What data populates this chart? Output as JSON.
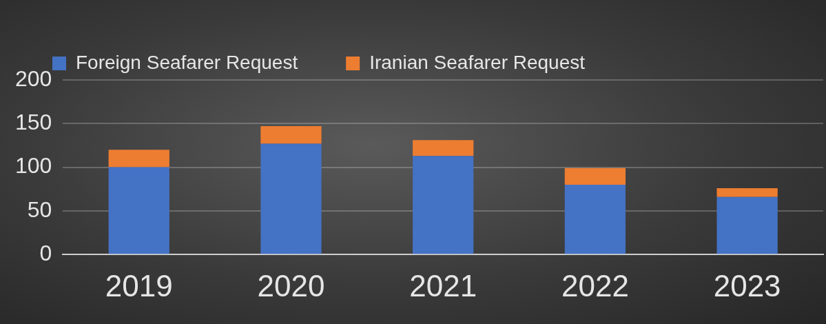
{
  "chart_data": {
    "type": "bar",
    "stacked": true,
    "categories": [
      "2019",
      "2020",
      "2021",
      "2022",
      "2023"
    ],
    "series": [
      {
        "name": "Foreign Seafarer Request",
        "color": "#4472c4",
        "values": [
          100,
          127,
          113,
          80,
          66
        ]
      },
      {
        "name": "Iranian Seafarer Request",
        "color": "#ed7d31",
        "values": [
          20,
          20,
          18,
          19,
          10
        ]
      }
    ],
    "ylim": [
      0,
      200
    ],
    "yticks": [
      0,
      50,
      100,
      150,
      200
    ],
    "grid": "y",
    "legend": "top"
  }
}
